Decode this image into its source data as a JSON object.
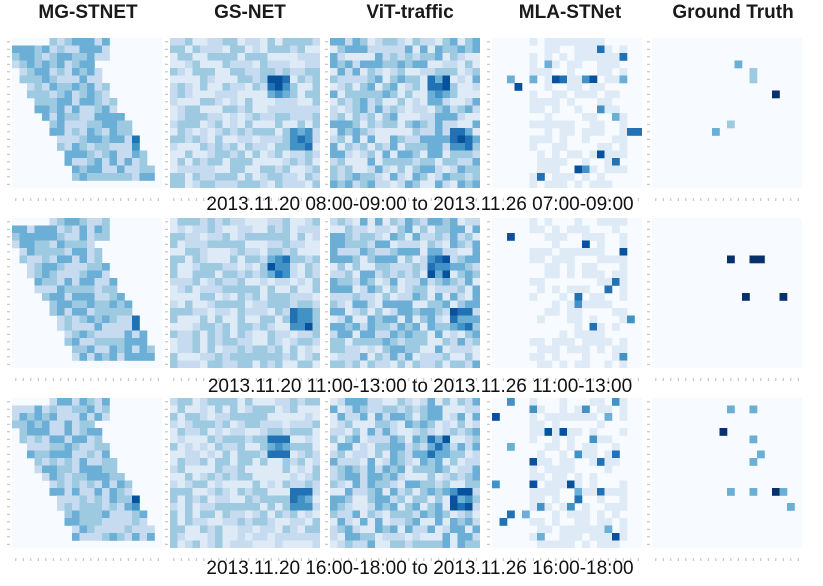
{
  "figure": {
    "columns": [
      {
        "key": "mgstnet",
        "label": "MG-STNET",
        "style": "dense"
      },
      {
        "key": "gsnet",
        "label": "GS-NET",
        "style": "noisy-light"
      },
      {
        "key": "vit",
        "label": "ViT-traffic",
        "style": "noisy"
      },
      {
        "key": "mla",
        "label": "MLA-STNet",
        "style": "faint"
      },
      {
        "key": "gt",
        "label": "Ground Truth",
        "style": "sparse"
      }
    ],
    "rows": [
      {
        "caption": "2013.11.20 08:00-09:00 to 2013.11.26 07:00-09:00"
      },
      {
        "caption": "2013.11.20 11:00-13:00 to 2013.11.26 11:00-13:00"
      },
      {
        "caption": "2013.11.20 16:00-18:00 to 2013.11.26 16:00-18:00"
      }
    ],
    "colormap": [
      "#f7fbff",
      "#deebf7",
      "#c6dbef",
      "#9ecae1",
      "#6baed6",
      "#4292c6",
      "#2171b5",
      "#08519c",
      "#08306b"
    ]
  }
}
